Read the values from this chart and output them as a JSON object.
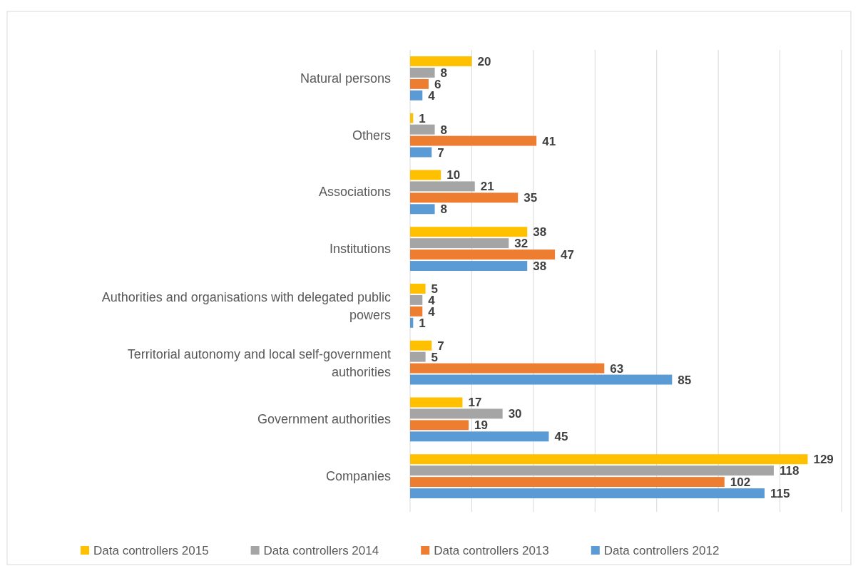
{
  "chart_data": {
    "type": "bar",
    "orientation": "horizontal",
    "categories": [
      "Natural persons",
      "Others",
      "Associations",
      "Institutions",
      "Authorities and organisations with delegated public powers",
      "Territorial autonomy and local self-government authorities",
      "Government authorities",
      "Companies"
    ],
    "series": [
      {
        "name": "Data controllers 2015",
        "color": "#ffc000",
        "values": [
          20,
          1,
          10,
          38,
          5,
          7,
          17,
          129
        ]
      },
      {
        "name": "Data controllers 2014",
        "color": "#a5a5a5",
        "values": [
          8,
          8,
          21,
          32,
          4,
          5,
          30,
          118
        ]
      },
      {
        "name": "Data controllers 2013",
        "color": "#ed7d31",
        "values": [
          6,
          41,
          35,
          47,
          4,
          63,
          19,
          102
        ]
      },
      {
        "name": "Data controllers 2012",
        "color": "#5b9bd5",
        "values": [
          4,
          7,
          8,
          38,
          1,
          85,
          45,
          115
        ]
      }
    ],
    "xlim": [
      0,
      140
    ],
    "xticks": [
      {
        "value": 0,
        "label": null
      },
      {
        "value": 20,
        "label": null
      },
      {
        "value": 40,
        "label": null
      },
      {
        "value": 60,
        "label": null
      },
      {
        "value": 80,
        "label": null
      },
      {
        "value": 100,
        "label": null
      },
      {
        "value": 120,
        "label": null
      },
      {
        "value": 140,
        "label": null
      }
    ],
    "tick_labels": "y",
    "grid": "x",
    "legend": "bottom",
    "data_labels": true
  }
}
